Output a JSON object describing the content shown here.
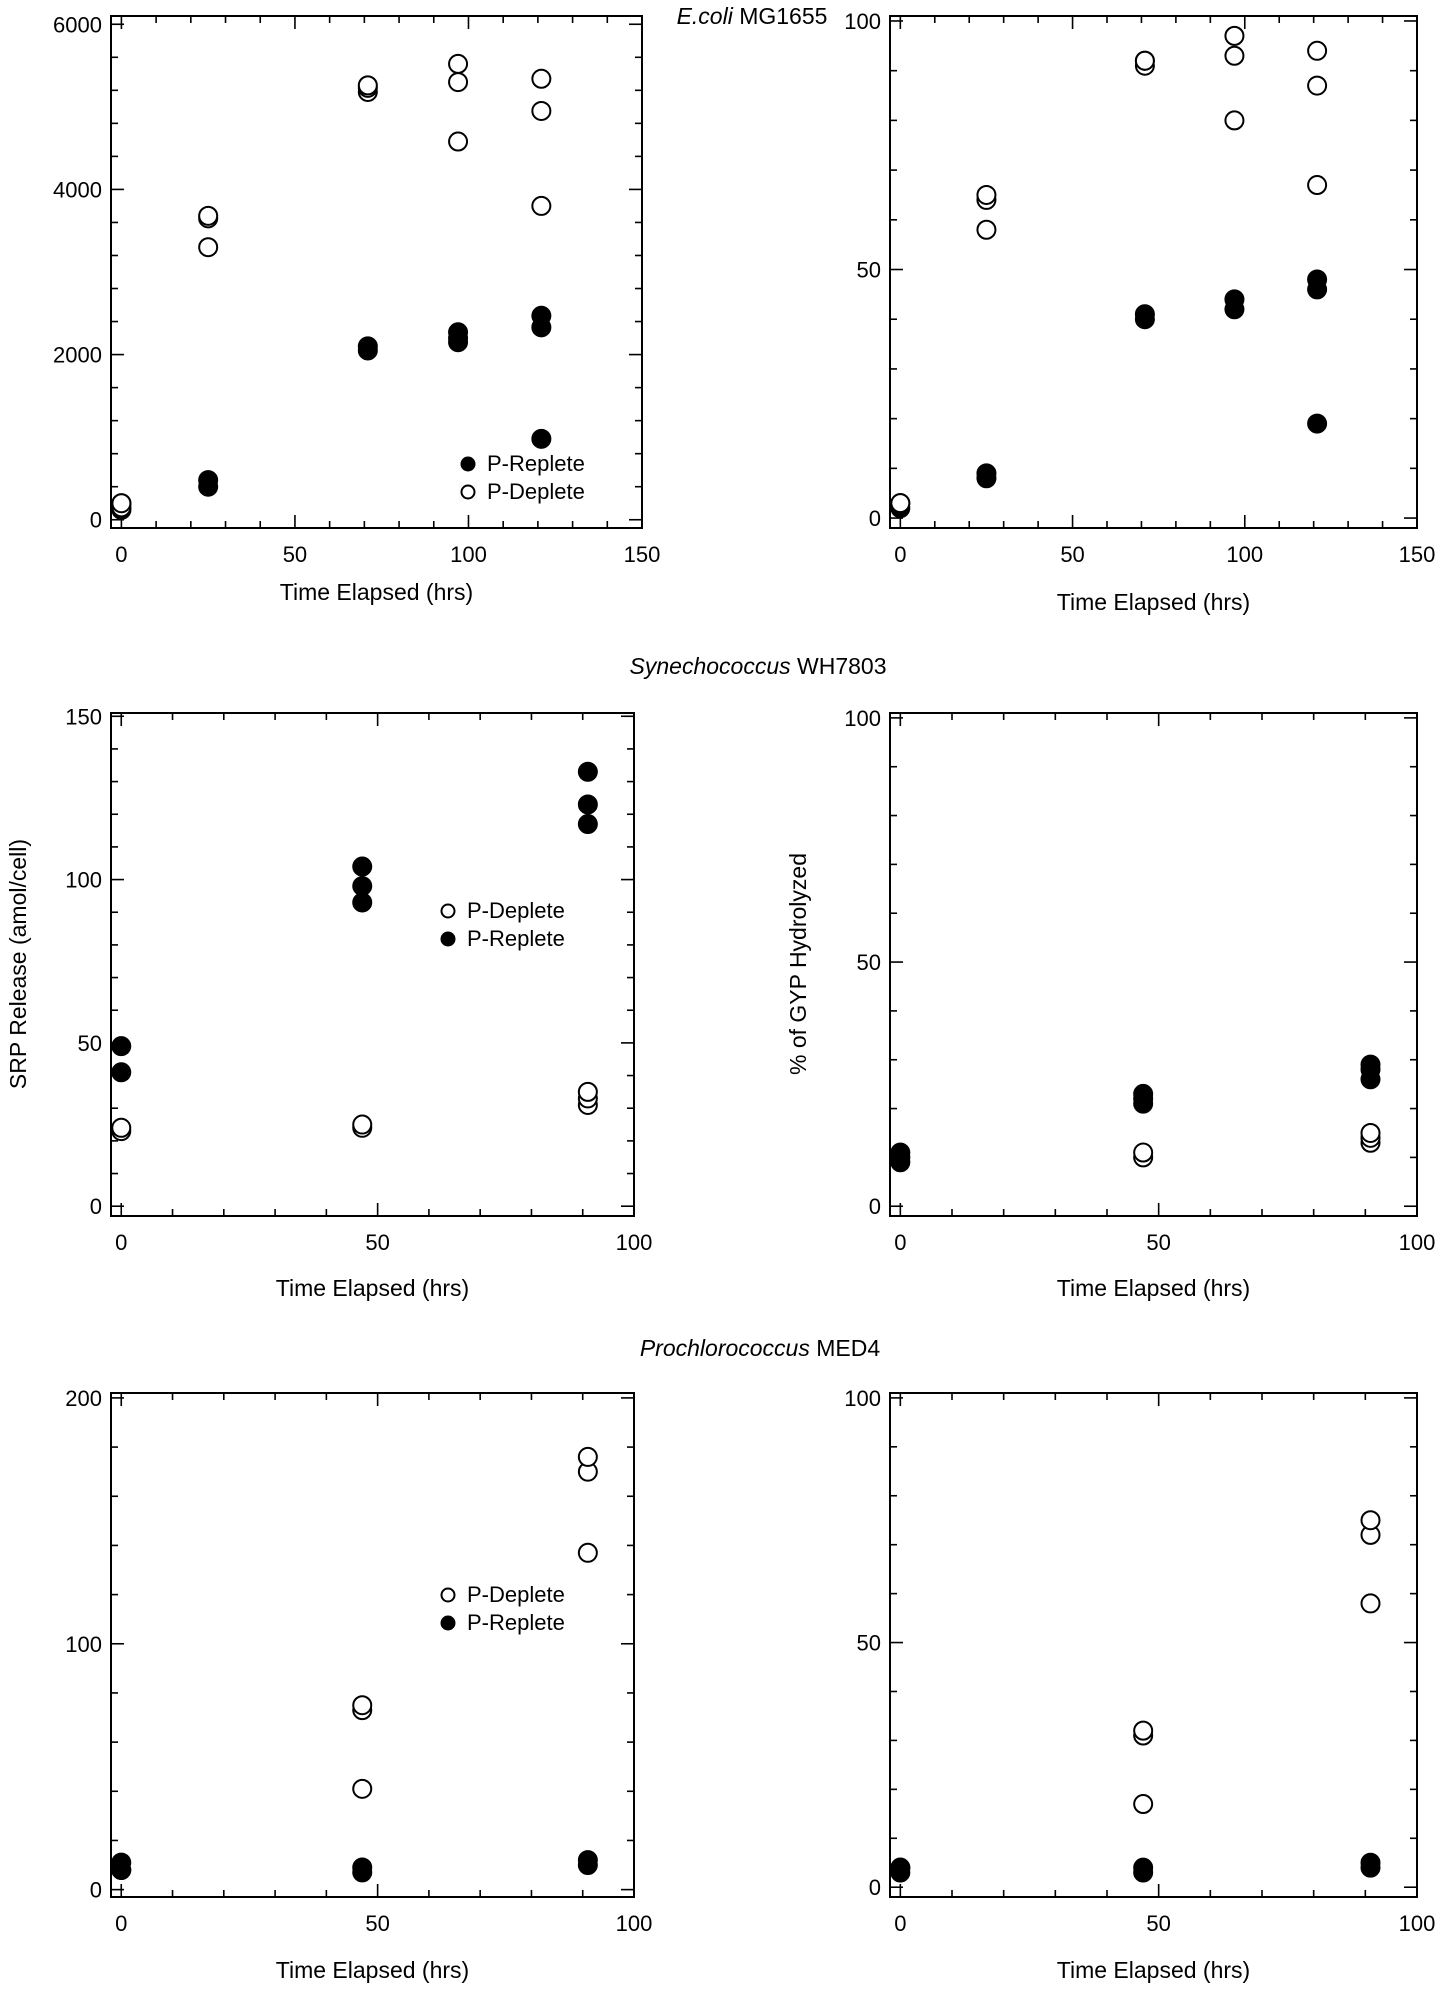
{
  "sections": [
    {
      "italic": "E.coli",
      "name": " MG1655"
    },
    {
      "italic": "Synechococcus",
      "name": " WH7803"
    },
    {
      "italic": "Prochlorococcus",
      "name": " MED4"
    }
  ],
  "chart_data": [
    {
      "id": "ecoli-srp",
      "type": "scatter",
      "title": "E.coli MG1655",
      "xlabel": "Time Elapsed (hrs)",
      "ylabel": "",
      "xlim": [
        -3,
        150
      ],
      "ylim": [
        -100,
        6100
      ],
      "xticks": [
        0,
        50,
        100,
        150
      ],
      "yticks": [
        0,
        2000,
        4000,
        6000
      ],
      "legend": {
        "position": "bottom-right",
        "order": [
          "P-Replete",
          "P-Deplete"
        ]
      },
      "series": [
        {
          "name": "P-Replete",
          "marker": "filled",
          "x": [
            0,
            0,
            25,
            25,
            71,
            71,
            97,
            97,
            97,
            121,
            121,
            121
          ],
          "y": [
            120,
            200,
            400,
            480,
            2050,
            2100,
            2150,
            2200,
            2270,
            2330,
            2470,
            980
          ]
        },
        {
          "name": "P-Deplete",
          "marker": "open",
          "x": [
            0,
            0,
            25,
            25,
            25,
            71,
            71,
            71,
            97,
            97,
            97,
            121,
            121,
            121
          ],
          "y": [
            150,
            200,
            3300,
            3650,
            3680,
            5180,
            5230,
            5260,
            4580,
            5300,
            5520,
            5340,
            4950,
            3800
          ]
        }
      ]
    },
    {
      "id": "ecoli-gyp",
      "type": "scatter",
      "title": "",
      "xlabel": "Time Elapsed (hrs)",
      "ylabel": "",
      "xlim": [
        -3,
        150
      ],
      "ylim": [
        -2,
        101
      ],
      "xticks": [
        0,
        50,
        100,
        150
      ],
      "yticks": [
        0,
        50,
        100
      ],
      "legend": null,
      "series": [
        {
          "name": "P-Replete",
          "marker": "filled",
          "x": [
            0,
            0,
            25,
            25,
            71,
            71,
            97,
            97,
            121,
            121,
            121
          ],
          "y": [
            2,
            3,
            8,
            9,
            40,
            41,
            42,
            44,
            46,
            48,
            19
          ]
        },
        {
          "name": "P-Deplete",
          "marker": "open",
          "x": [
            0,
            25,
            25,
            25,
            71,
            71,
            71,
            97,
            97,
            97,
            121,
            121,
            121
          ],
          "y": [
            3,
            58,
            64,
            65,
            91,
            92,
            92,
            97,
            93,
            80,
            94,
            87,
            67
          ]
        }
      ]
    },
    {
      "id": "syn-srp",
      "type": "scatter",
      "title": "Synechococcus WH7803",
      "xlabel": "Time Elapsed (hrs)",
      "ylabel": "SRP Release (amol/cell)",
      "xlim": [
        -2,
        100
      ],
      "ylim": [
        -3,
        151
      ],
      "xticks": [
        0,
        50,
        100
      ],
      "yticks": [
        0,
        50,
        100,
        150
      ],
      "legend": {
        "position": "center-right",
        "order": [
          "P-Deplete",
          "P-Replete"
        ]
      },
      "series": [
        {
          "name": "P-Deplete",
          "marker": "open",
          "x": [
            0,
            0,
            47,
            47,
            91,
            91,
            91
          ],
          "y": [
            23,
            24,
            24,
            25,
            31,
            33,
            35
          ]
        },
        {
          "name": "P-Replete",
          "marker": "filled",
          "x": [
            0,
            0,
            47,
            47,
            47,
            91,
            91,
            91
          ],
          "y": [
            41,
            49,
            93,
            98,
            104,
            117,
            123,
            133
          ]
        }
      ]
    },
    {
      "id": "syn-gyp",
      "type": "scatter",
      "title": "",
      "xlabel": "Time Elapsed (hrs)",
      "ylabel": "% of GYP Hydrolyzed",
      "xlim": [
        -2,
        100
      ],
      "ylim": [
        -2,
        101
      ],
      "xticks": [
        0,
        50,
        100
      ],
      "yticks": [
        0,
        50,
        100
      ],
      "legend": null,
      "series": [
        {
          "name": "P-Deplete",
          "marker": "open",
          "x": [
            0,
            47,
            47,
            91,
            91,
            91
          ],
          "y": [
            10,
            10,
            11,
            13,
            14,
            15
          ]
        },
        {
          "name": "P-Replete",
          "marker": "filled",
          "x": [
            0,
            0,
            47,
            47,
            47,
            91,
            91,
            91
          ],
          "y": [
            9,
            11,
            21,
            22,
            23,
            26,
            28,
            29
          ]
        }
      ]
    },
    {
      "id": "pro-srp",
      "type": "scatter",
      "title": "Prochlorococcus MED4",
      "xlabel": "Time Elapsed (hrs)",
      "ylabel": "",
      "xlim": [
        -2,
        100
      ],
      "ylim": [
        -3,
        202
      ],
      "xticks": [
        0,
        50,
        100
      ],
      "yticks": [
        0,
        100,
        200
      ],
      "legend": {
        "position": "center-right",
        "order": [
          "P-Deplete",
          "P-Replete"
        ]
      },
      "series": [
        {
          "name": "P-Deplete",
          "marker": "open",
          "x": [
            0,
            47,
            47,
            47,
            91,
            91,
            91
          ],
          "y": [
            8,
            41,
            73,
            75,
            137,
            170,
            176
          ]
        },
        {
          "name": "P-Replete",
          "marker": "filled",
          "x": [
            0,
            0,
            47,
            47,
            91,
            91
          ],
          "y": [
            8,
            11,
            7,
            9,
            10,
            12
          ]
        }
      ]
    },
    {
      "id": "pro-gyp",
      "type": "scatter",
      "title": "",
      "xlabel": "Time Elapsed (hrs)",
      "ylabel": "",
      "xlim": [
        -2,
        100
      ],
      "ylim": [
        -2,
        101
      ],
      "xticks": [
        0,
        50,
        100
      ],
      "yticks": [
        0,
        50,
        100
      ],
      "legend": null,
      "series": [
        {
          "name": "P-Deplete",
          "marker": "open",
          "x": [
            0,
            47,
            47,
            47,
            91,
            91,
            91
          ],
          "y": [
            4,
            17,
            31,
            32,
            58,
            72,
            75
          ]
        },
        {
          "name": "P-Replete",
          "marker": "filled",
          "x": [
            0,
            0,
            47,
            47,
            91,
            91
          ],
          "y": [
            3,
            4,
            3,
            4,
            4,
            5
          ]
        }
      ]
    }
  ]
}
